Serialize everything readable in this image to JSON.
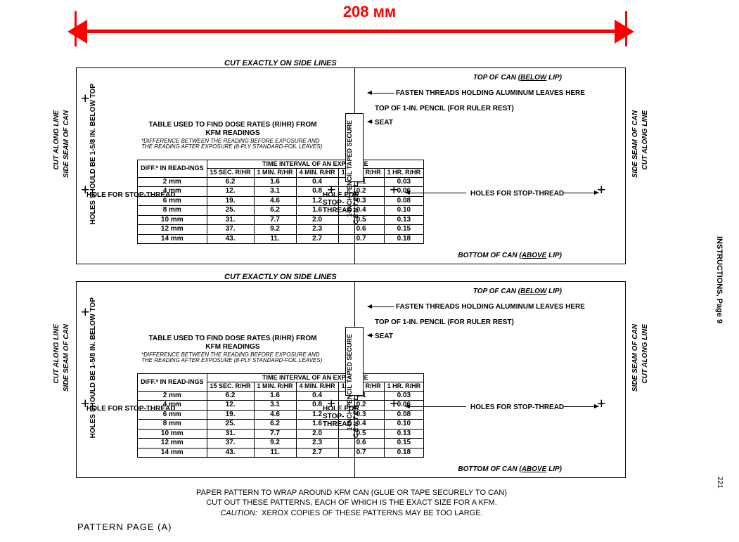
{
  "dimension": {
    "label": "208 мм",
    "color": "#ff0000"
  },
  "cut_label": "CUT EXACTLY ON SIDE LINES",
  "side": {
    "cut_along": "CUT ALONG LINE",
    "seam": "SIDE SEAM OF CAN"
  },
  "holes_should_be": "HOLES SHOULD BE\n1-5/8 IN. BELOW TOP",
  "table": {
    "title": "TABLE USED TO FIND DOSE RATES (R/HR)\nFROM KFM READINGS",
    "note": "*DIFFERENCE BETWEEN THE READING BEFORE EXPOSURE AND THE READING AFTER EXPOSURE (8-PLY STANDARD-FOIL LEAVES)",
    "hdr_diff": "DIFF.* IN READ-INGS",
    "hdr_time": "TIME INTERVAL OF AN EXPOSURE",
    "cols": [
      "15 SEC. R/HR",
      "1 MIN. R/HR",
      "4 MIN. R/HR",
      "16 MIN. R/HR",
      "1 HR. R/HR"
    ],
    "rows": [
      {
        "d": "2 mm",
        "v": [
          "6.2",
          "1.6",
          "0.4",
          "0.1",
          "0.03"
        ]
      },
      {
        "d": "4 mm",
        "v": [
          "12.",
          "3.1",
          "0.8",
          "0.2",
          "0.06"
        ]
      },
      {
        "d": "6 mm",
        "v": [
          "19.",
          "4.6",
          "1.2",
          "0.3",
          "0.08"
        ]
      },
      {
        "d": "8 mm",
        "v": [
          "25.",
          "6.2",
          "1.6",
          "0.4",
          "0.10"
        ]
      },
      {
        "d": "10 mm",
        "v": [
          "31.",
          "7.7",
          "2.0",
          "0.5",
          "0.13"
        ]
      },
      {
        "d": "12 mm",
        "v": [
          "37.",
          "9.2",
          "2.3",
          "0.6",
          "0.15"
        ]
      },
      {
        "d": "14 mm",
        "v": [
          "43.",
          "11.",
          "2.7",
          "0.7",
          "0.18"
        ]
      }
    ]
  },
  "hole_text": "HOLE FOR STOP-THREAD",
  "center_line": "CENTER LINE",
  "pencil": "1-INCH PENCIL TAPED SECURE",
  "right": {
    "top_can": "TOP OF CAN (BELOW LIP)",
    "fasten": "FASTEN THREADS HOLDING ALUMINUM LEAVES HERE",
    "top_pencil": "TOP OF 1-IN. PENCIL (FOR RULER REST)",
    "seat": "SEAT",
    "holes_stop": "HOLES FOR STOP-THREAD",
    "bottom_can": "BOTTOM OF CAN (ABOVE LIP)"
  },
  "footer": {
    "line1": "PAPER PATTERN TO WRAP AROUND KFM CAN (GLUE OR TAPE SECURELY TO CAN)",
    "line2": "CUT OUT THESE PATTERNS, EACH OF WHICH IS THE EXACT SIZE FOR A KFM.",
    "line3": "CAUTION:  XEROX COPIES OF THESE PATTERNS MAY BE TOO LARGE."
  },
  "pattern_page": "PATTERN PAGE (A)",
  "instructions": "INSTRUCTIONS, Page 9",
  "page_num": "221"
}
